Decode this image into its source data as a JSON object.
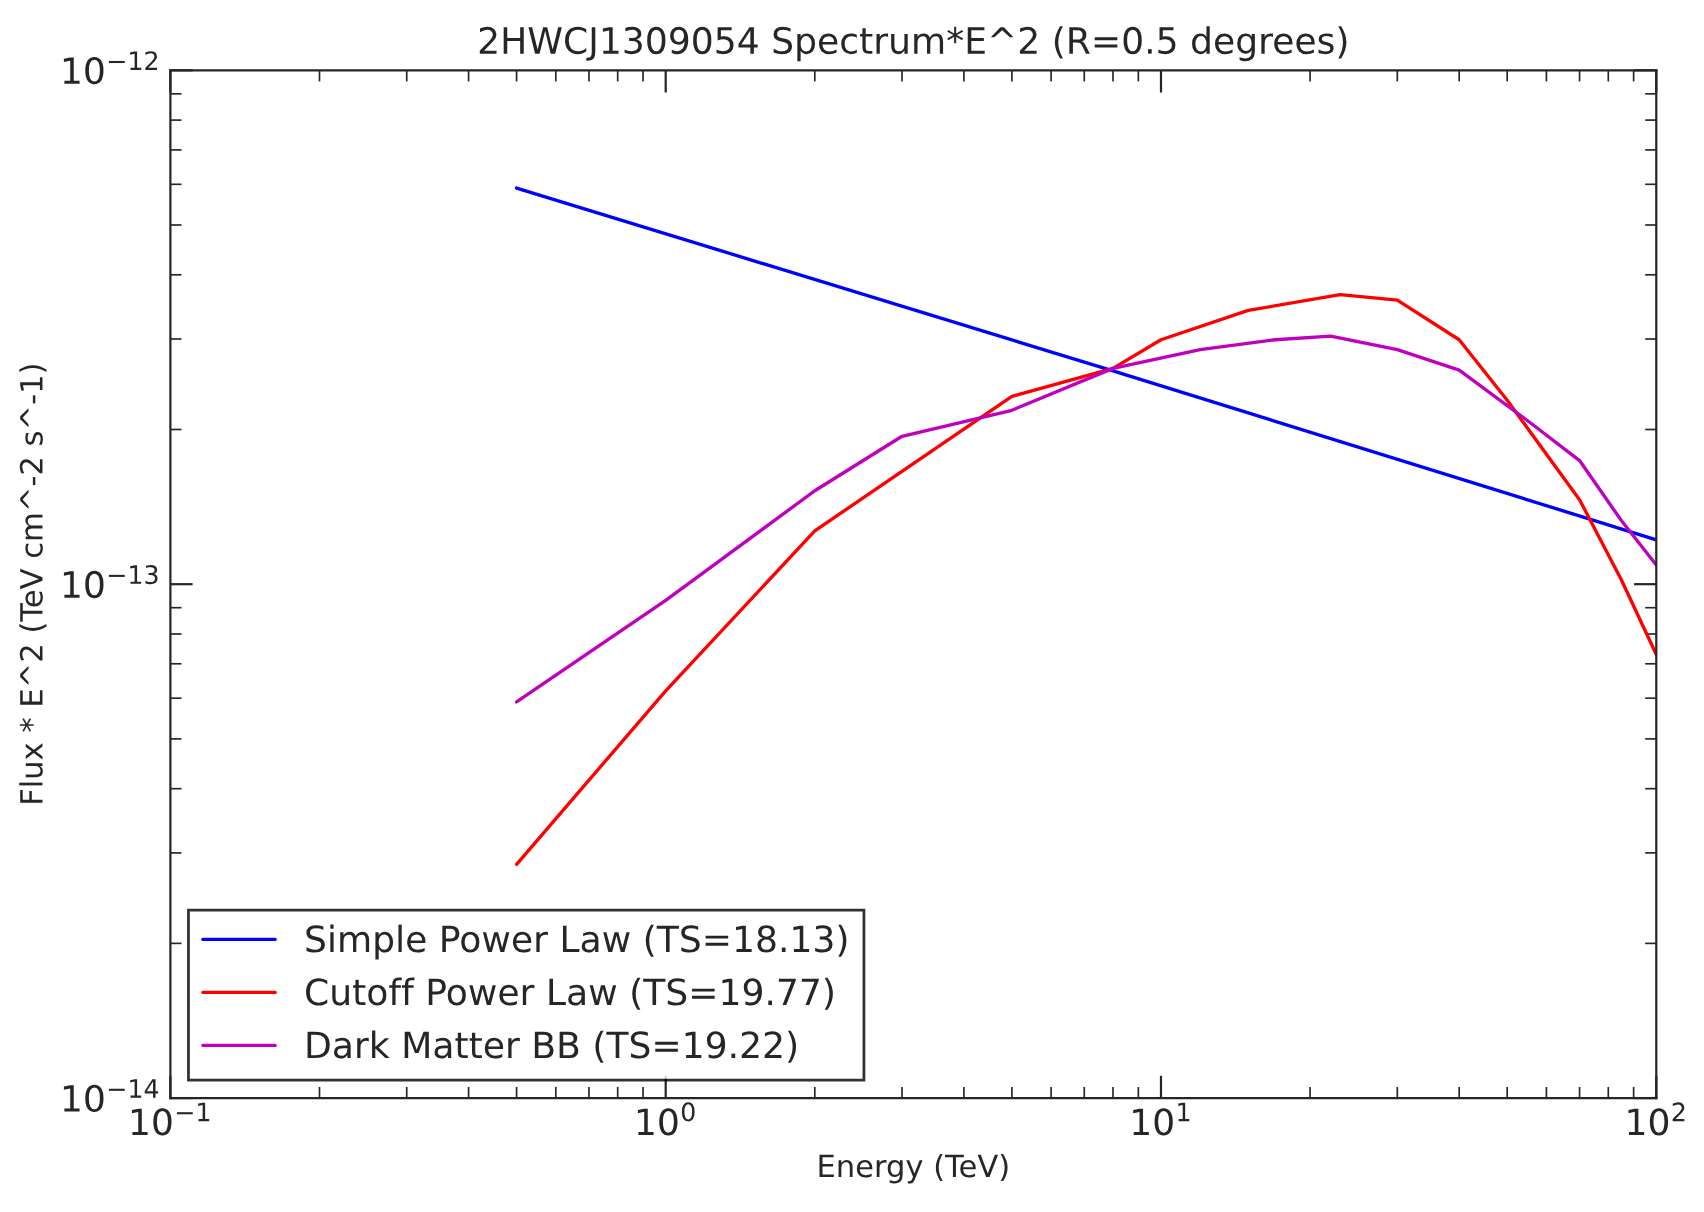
{
  "chart_data": {
    "type": "line",
    "title": "2HWCJ1309054 Spectrum*E^2 (R=0.5 degrees)",
    "xlabel": "Energy (TeV)",
    "ylabel": "Flux * E^2 (TeV cm^-2 s^-1)",
    "log": "xy",
    "legend": "bottom left",
    "grid": false,
    "marker": "none",
    "line_style": "solid",
    "xlim": [
      0.1,
      100
    ],
    "ylim": [
      1e-14,
      1e-12
    ],
    "xticks": [
      {
        "value": 0.1,
        "label": "10$^{−1}$"
      },
      {
        "value": 1,
        "label": "10$^{0}$"
      },
      {
        "value": 10,
        "label": "10$^{1}$"
      },
      {
        "value": 100,
        "label": "10$^{2}$"
      }
    ],
    "yticks": [
      {
        "value": 1e-14,
        "label": "10$^{−14}$"
      },
      {
        "value": 1e-13,
        "label": "10$^{−13}$"
      },
      {
        "value": 1e-12,
        "label": "10$^{−12}$"
      }
    ],
    "series": [
      {
        "name": "Simple Power Law (TS=18.13)",
        "color": "#0000ff",
        "x": [
          0.5,
          8,
          100
        ],
        "values": [
          5.9e-13,
          2.6e-13,
          1.22e-13
        ]
      },
      {
        "name": "Cutoff Power Law (TS=19.77)",
        "color": "#ff0000",
        "x": [
          0.5,
          1,
          2,
          5,
          8,
          10,
          15,
          23,
          30,
          40,
          50,
          70,
          85,
          100
        ],
        "values": [
          2.85e-14,
          6.2e-14,
          1.27e-13,
          2.32e-13,
          2.63e-13,
          2.99e-13,
          3.41e-13,
          3.66e-13,
          3.57e-13,
          2.99e-13,
          2.28e-13,
          1.46e-13,
          1.02e-13,
          7.3e-14
        ]
      },
      {
        "name": "Dark Matter BB (TS=19.22)",
        "color": "#bf00bf",
        "x": [
          0.5,
          1,
          2,
          3,
          5,
          8,
          12,
          17,
          22,
          30,
          40,
          55,
          70,
          85,
          100
        ],
        "values": [
          5.9e-14,
          9.3e-14,
          1.52e-13,
          1.94e-13,
          2.18e-13,
          2.63e-13,
          2.86e-13,
          2.99e-13,
          3.04e-13,
          2.86e-13,
          2.61e-13,
          2.08e-13,
          1.74e-13,
          1.33e-13,
          1.09e-13
        ]
      }
    ]
  }
}
